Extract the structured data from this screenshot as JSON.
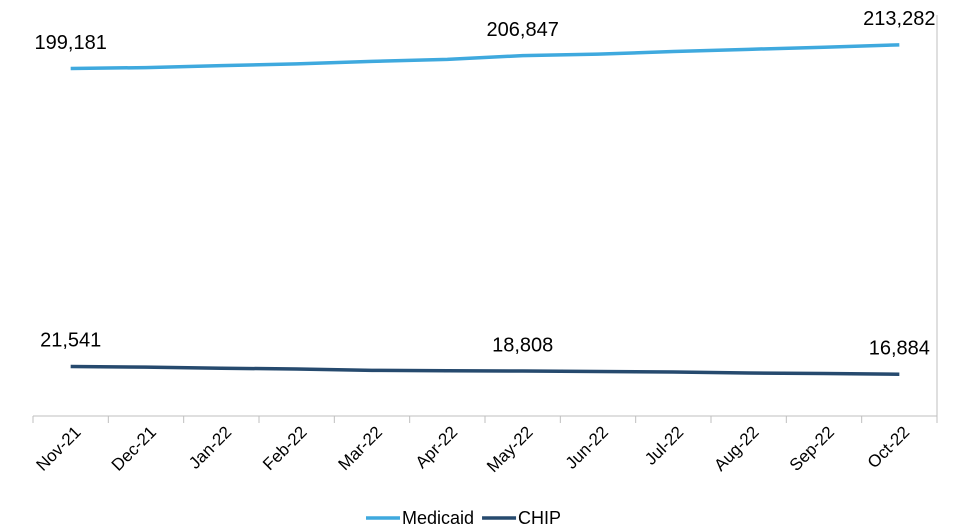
{
  "chart_data": {
    "type": "line",
    "categories": [
      "Nov-21",
      "Dec-21",
      "Jan-22",
      "Feb-22",
      "Mar-22",
      "Apr-22",
      "May-22",
      "Jun-22",
      "Jul-22",
      "Aug-22",
      "Sep-22",
      "Oct-22"
    ],
    "series": [
      {
        "name": "Medicaid",
        "color": "#3fa9de",
        "values": [
          199181,
          199700,
          200900,
          201900,
          203400,
          204600,
          206847,
          207700,
          209300,
          210600,
          211800,
          213282
        ],
        "value_labels": [
          "199,181",
          null,
          null,
          null,
          null,
          null,
          "206,847",
          null,
          null,
          null,
          null,
          "213,282"
        ]
      },
      {
        "name": "CHIP",
        "color": "#264a6e",
        "values": [
          21541,
          21100,
          20500,
          20000,
          19200,
          19000,
          18808,
          18500,
          18200,
          17600,
          17300,
          16884
        ],
        "value_labels": [
          "21,541",
          null,
          null,
          null,
          null,
          null,
          "18,808",
          null,
          null,
          null,
          null,
          "16,884"
        ]
      }
    ],
    "ylim": [
      -8000,
      240000
    ],
    "legend": "bottom"
  }
}
